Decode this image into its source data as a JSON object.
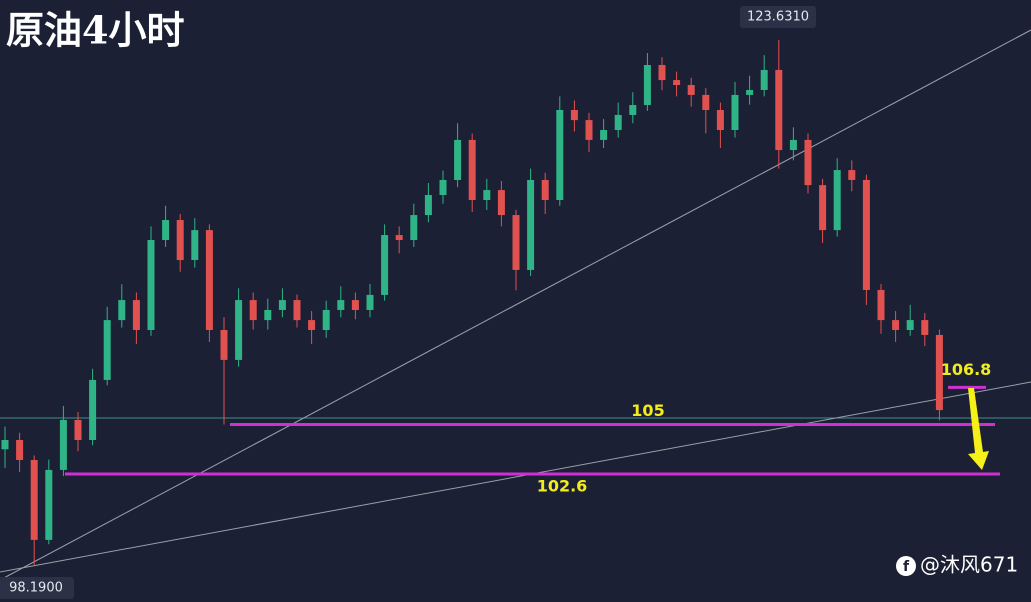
{
  "chart_data": {
    "type": "candlestick",
    "title": "原油4小时",
    "open": [
      103.8,
      104.25,
      103.28,
      99.41,
      102.8,
      105.22,
      104.25,
      107.16,
      110.06,
      111.03,
      109.58,
      113.94,
      114.91,
      112.97,
      114.42,
      109.58,
      108.13,
      111.03,
      110.06,
      110.55,
      111.03,
      110.06,
      109.58,
      110.55,
      111.03,
      110.55,
      111.28,
      114.18,
      113.94,
      115.15,
      116.12,
      116.85,
      118.79,
      115.88,
      116.36,
      115.15,
      112.49,
      116.85,
      115.88,
      120.24,
      119.75,
      118.79,
      119.27,
      120.0,
      120.48,
      122.42,
      121.69,
      121.45,
      120.97,
      120.24,
      119.27,
      120.97,
      121.21,
      122.18,
      118.3,
      118.79,
      116.6,
      114.42,
      117.33,
      116.85,
      111.52,
      110.06,
      109.58,
      110.06,
      109.34
    ],
    "high": [
      104.9,
      104.6,
      103.5,
      103.3,
      105.9,
      105.6,
      107.7,
      110.7,
      111.8,
      111.4,
      114.6,
      115.6,
      115.2,
      115.0,
      114.7,
      110.2,
      111.6,
      111.4,
      111.1,
      111.6,
      111.3,
      110.5,
      111.0,
      111.7,
      111.4,
      111.8,
      114.7,
      114.6,
      115.7,
      116.7,
      117.3,
      119.6,
      119.1,
      116.9,
      116.8,
      115.4,
      117.4,
      117.2,
      120.9,
      120.7,
      120.1,
      119.8,
      120.6,
      121.1,
      123.0,
      122.8,
      122.1,
      121.8,
      121.3,
      120.6,
      121.6,
      121.9,
      122.9,
      123.631,
      119.4,
      119.1,
      116.9,
      117.9,
      117.8,
      117.1,
      111.8,
      110.5,
      110.8,
      110.4,
      109.6
    ],
    "low": [
      102.9,
      102.7,
      98.19,
      99.2,
      102.5,
      103.7,
      104.0,
      106.9,
      109.7,
      108.9,
      109.3,
      113.6,
      112.4,
      112.6,
      109.0,
      105.0,
      107.8,
      109.6,
      109.6,
      110.2,
      109.7,
      108.9,
      109.2,
      110.2,
      110.1,
      110.2,
      111.0,
      113.3,
      113.6,
      114.8,
      115.7,
      116.5,
      115.3,
      115.4,
      114.6,
      111.5,
      112.2,
      115.2,
      115.6,
      119.2,
      118.2,
      118.4,
      118.9,
      119.6,
      120.2,
      121.2,
      120.9,
      120.4,
      119.1,
      118.4,
      118.9,
      120.5,
      120.9,
      117.4,
      117.8,
      116.2,
      113.8,
      114.1,
      116.3,
      110.8,
      109.4,
      109.0,
      109.3,
      108.8,
      105.2
    ],
    "close": [
      104.25,
      103.28,
      99.41,
      102.8,
      105.22,
      104.25,
      107.16,
      110.06,
      111.03,
      109.58,
      113.94,
      114.91,
      112.97,
      114.42,
      109.58,
      108.13,
      111.03,
      110.06,
      110.55,
      111.03,
      110.06,
      109.58,
      110.55,
      111.03,
      110.55,
      111.28,
      114.18,
      113.94,
      115.15,
      116.12,
      116.85,
      118.79,
      115.88,
      116.36,
      115.15,
      112.49,
      116.85,
      115.88,
      120.24,
      119.75,
      118.79,
      119.27,
      120.0,
      120.48,
      122.42,
      121.69,
      121.45,
      120.97,
      120.24,
      119.27,
      120.97,
      121.21,
      122.18,
      118.3,
      118.79,
      116.6,
      114.42,
      117.33,
      116.85,
      111.52,
      110.06,
      109.58,
      110.06,
      109.34,
      105.7
    ],
    "up_color": "#2fb487",
    "down_color": "#e1514f",
    "ylim": [
      96.4,
      125.57
    ],
    "price_labels": [
      {
        "value": 123.631,
        "label": "123.6310"
      },
      {
        "value": 98.19,
        "label": "98.1900"
      }
    ],
    "levels": [
      105,
      102.6
    ],
    "level_color": "#d12fd6",
    "target": 106.8,
    "watermark": "@沐风671"
  }
}
